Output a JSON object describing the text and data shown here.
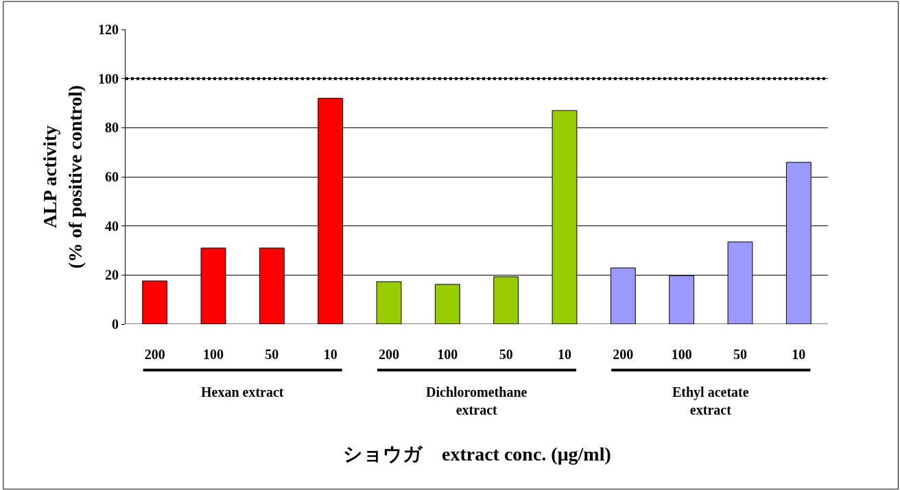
{
  "chart_data": {
    "type": "bar",
    "xlabel": "ショウガ　extract conc. (μg/ml)",
    "ylabel": "ALP activity\n(% of positive control)",
    "categories": [
      "200",
      "100",
      "50",
      "10",
      "200",
      "100",
      "50",
      "10",
      "200",
      "100",
      "50",
      "10"
    ],
    "values": [
      17.6,
      31,
      31,
      92,
      17.3,
      16.2,
      19.3,
      87,
      22.9,
      19.8,
      33.5,
      65.9
    ],
    "colors": [
      "#ff0000",
      "#ff0000",
      "#ff0000",
      "#ff0000",
      "#99cc00",
      "#99cc00",
      "#99cc00",
      "#99cc00",
      "#9999ff",
      "#9999ff",
      "#9999ff",
      "#9999ff"
    ],
    "ylim": [
      0,
      120
    ],
    "yticks": [
      0,
      20,
      40,
      60,
      80,
      100,
      120
    ],
    "grid": "y",
    "ref_lines": [
      {
        "axis": "y",
        "value": 100,
        "color": "#000000",
        "line_style": "dotted"
      }
    ],
    "annotations": [
      "Hexan extract",
      "Dichloromethane\nextract",
      "Ethyl acetate\nextract"
    ]
  }
}
